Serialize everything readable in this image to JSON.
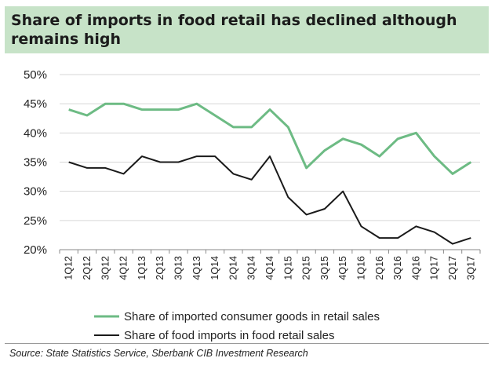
{
  "title": "Share of imports in food retail has declined although remains high",
  "source": "Source: State Statistics Service, Sberbank CIB Investment Research",
  "chart_data": {
    "type": "line",
    "categories": [
      "1Q12",
      "2Q12",
      "3Q12",
      "4Q12",
      "1Q13",
      "2Q13",
      "3Q13",
      "4Q13",
      "1Q14",
      "2Q14",
      "3Q14",
      "4Q14",
      "1Q15",
      "2Q15",
      "3Q15",
      "4Q15",
      "1Q16",
      "2Q16",
      "3Q16",
      "4Q16",
      "1Q17",
      "2Q17",
      "3Q17"
    ],
    "yticks": [
      "50%",
      "45%",
      "40%",
      "35%",
      "30%",
      "25%",
      "20%"
    ],
    "ylim": [
      20,
      50
    ],
    "grid": true,
    "legend_position": "bottom",
    "series": [
      {
        "name": "Share of imported consumer goods in retail sales",
        "color": "#6dbb84",
        "values": [
          44,
          43,
          45,
          45,
          44,
          44,
          44,
          45,
          43,
          41,
          41,
          44,
          41,
          34,
          37,
          39,
          38,
          36,
          39,
          40,
          36,
          33,
          35
        ]
      },
      {
        "name": "Share of food imports in food retail sales",
        "color": "#1a1a1a",
        "values": [
          35,
          34,
          34,
          33,
          36,
          35,
          35,
          36,
          36,
          33,
          32,
          36,
          29,
          26,
          27,
          30,
          24,
          22,
          22,
          24,
          23,
          21,
          22
        ]
      }
    ]
  }
}
